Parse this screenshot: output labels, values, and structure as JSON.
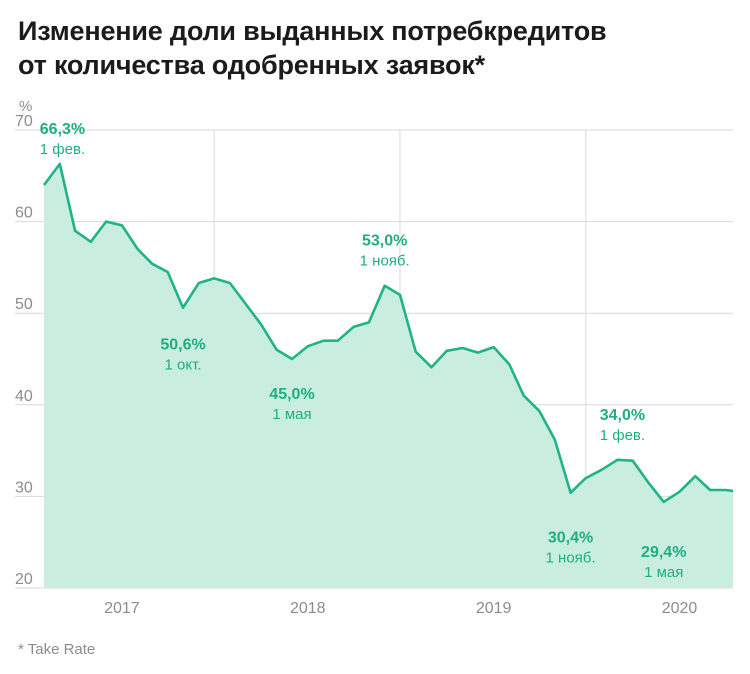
{
  "header": {
    "title_line1": "Изменение доли выданных потребкредитов",
    "title_line2": "от количества одобренных заявок*",
    "unit": "%"
  },
  "footnote": "* Take Rate",
  "colors": {
    "line": "#20b386",
    "area": "#c9eedf",
    "annotation": "#1fae82",
    "grid": "#d9d9d9",
    "axis_text": "#8c8c8c"
  },
  "chart_data": {
    "type": "area",
    "title": "Изменение доли выданных потребкредитов от количества одобренных заявок*",
    "ylabel": "%",
    "ylim": [
      20,
      70
    ],
    "xlim": [
      "2016-08-01",
      "2020-04-15"
    ],
    "yticks": [
      "20",
      "30",
      "40",
      "50",
      "60",
      "70"
    ],
    "xticks": [
      {
        "date": "2017-01-01",
        "label": "2017"
      },
      {
        "date": "2018-01-01",
        "label": "2018"
      },
      {
        "date": "2019-01-01",
        "label": "2019"
      },
      {
        "date": "2020-01-01",
        "label": "2020"
      }
    ],
    "year_boundaries": [
      "2017-07-01",
      "2018-07-01",
      "2019-07-01"
    ],
    "grid": true,
    "x": [
      "2016-08-01",
      "2016-09-01",
      "2016-10-01",
      "2016-11-01",
      "2016-12-01",
      "2017-01-01",
      "2017-02-01",
      "2017-03-01",
      "2017-04-01",
      "2017-05-01",
      "2017-06-01",
      "2017-07-01",
      "2017-08-01",
      "2017-09-01",
      "2017-10-01",
      "2017-11-01",
      "2017-12-01",
      "2018-01-01",
      "2018-02-01",
      "2018-03-01",
      "2018-04-01",
      "2018-05-01",
      "2018-06-01",
      "2018-07-01",
      "2018-08-01",
      "2018-09-01",
      "2018-10-01",
      "2018-11-01",
      "2018-12-01",
      "2019-01-01",
      "2019-02-01",
      "2019-03-01",
      "2019-04-01",
      "2019-05-01",
      "2019-06-01",
      "2019-07-01",
      "2019-08-01",
      "2019-09-01",
      "2019-10-01",
      "2019-11-01",
      "2019-12-01",
      "2020-01-01",
      "2020-02-01",
      "2020-03-01",
      "2020-04-01",
      "2020-04-15"
    ],
    "values": [
      64.0,
      66.3,
      59.0,
      57.8,
      60.0,
      59.6,
      57.0,
      55.4,
      54.5,
      50.6,
      53.3,
      53.8,
      53.3,
      51.0,
      48.8,
      46.0,
      45.0,
      46.4,
      47.0,
      47.0,
      48.5,
      49.0,
      53.0,
      52.0,
      45.8,
      44.1,
      45.9,
      46.2,
      45.7,
      46.3,
      44.4,
      41.0,
      39.3,
      36.2,
      30.4,
      32.0,
      32.9,
      34.0,
      33.9,
      31.5,
      29.4,
      30.5,
      32.2,
      30.7,
      30.7,
      30.6
    ],
    "annotations": [
      {
        "date": "2016-09-01",
        "value_label": "66,3%",
        "date_label": "1 фев."
      },
      {
        "date": "2017-05-01",
        "value_label": "50,6%",
        "date_label": "1 окт."
      },
      {
        "date": "2017-12-01",
        "value_label": "45,0%",
        "date_label": "1 мая"
      },
      {
        "date": "2018-06-01",
        "value_label": "53,0%",
        "date_label": "1 нояб."
      },
      {
        "date": "2019-06-01",
        "value_label": "30,4%",
        "date_label": "1 нояб."
      },
      {
        "date": "2019-09-01",
        "value_label": "34,0%",
        "date_label": "1 фев."
      },
      {
        "date": "2019-12-01",
        "value_label": "29,4%",
        "date_label": "1 мая"
      }
    ]
  }
}
